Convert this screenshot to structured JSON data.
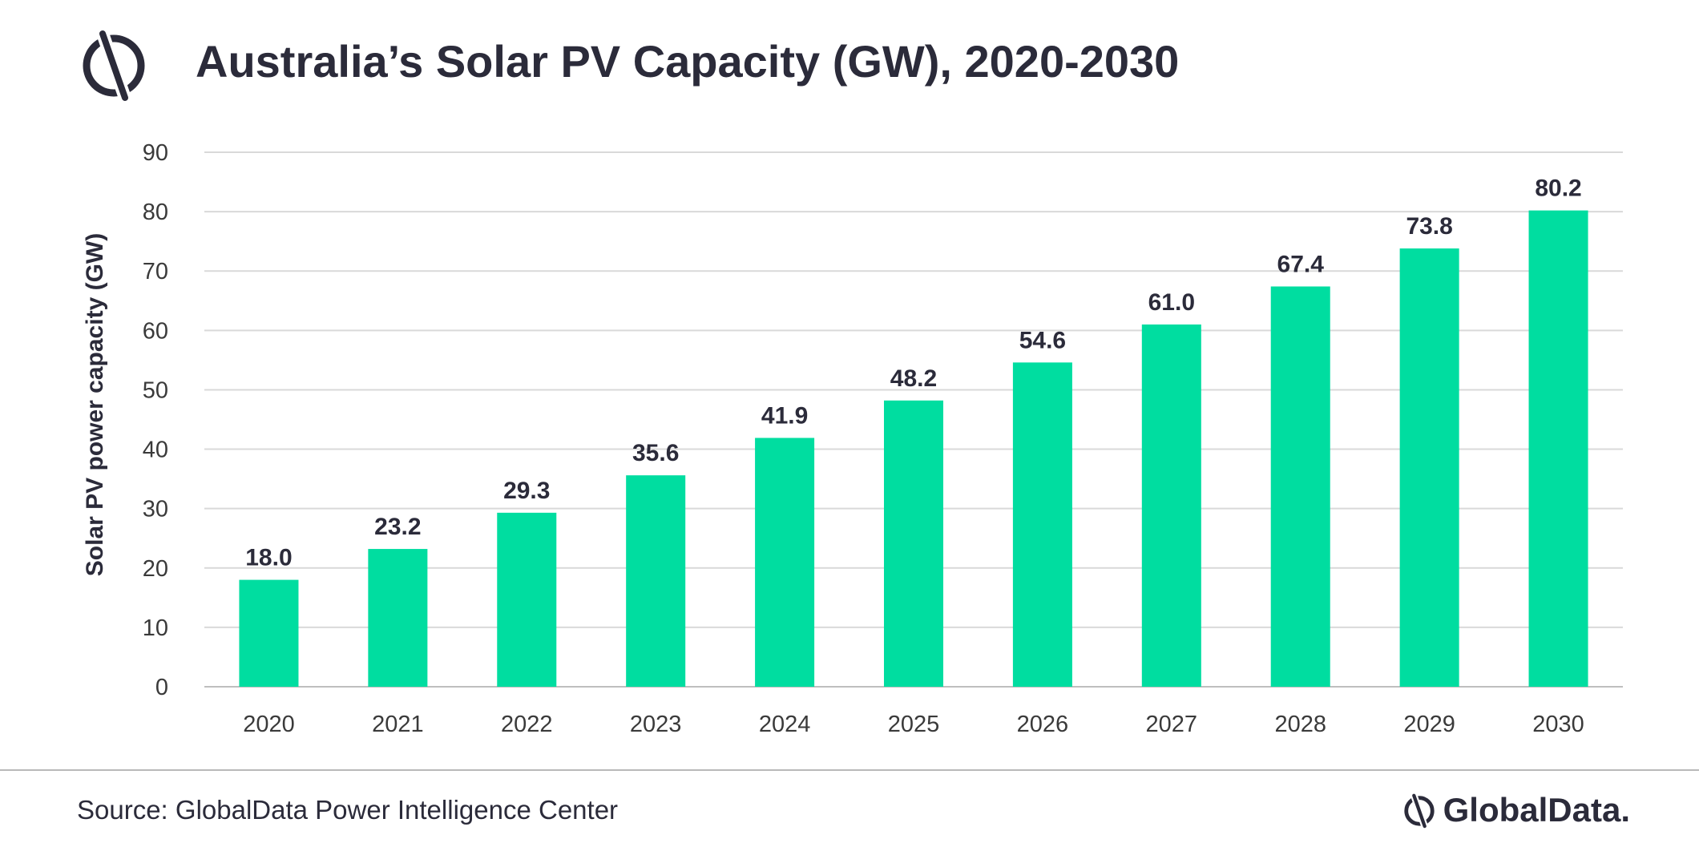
{
  "header": {
    "title": "Australia’s Solar PV Capacity (GW), 2020-2030",
    "logo_icon": "globaldata-mark-icon"
  },
  "footer": {
    "source": "Source: GlobalData Power Intelligence Center",
    "brand": "GlobalData."
  },
  "colors": {
    "bar": "#00DDA0",
    "text": "#2B2B3A",
    "grid": "#D9D9D9"
  },
  "chart_data": {
    "type": "bar",
    "title": "Australia’s Solar PV Capacity (GW), 2020-2030",
    "xlabel": "",
    "ylabel": "Solar PV power capacity (GW)",
    "categories": [
      "2020",
      "2021",
      "2022",
      "2023",
      "2024",
      "2025",
      "2026",
      "2027",
      "2028",
      "2029",
      "2030"
    ],
    "values": [
      18.0,
      23.2,
      29.3,
      35.6,
      41.9,
      48.2,
      54.6,
      61.0,
      67.4,
      73.8,
      80.2
    ],
    "value_labels": [
      "18.0",
      "23.2",
      "29.3",
      "35.6",
      "41.9",
      "48.2",
      "54.6",
      "61.0",
      "67.4",
      "73.8",
      "80.2"
    ],
    "ylim": [
      0,
      90
    ],
    "yticks": [
      "0",
      "10",
      "20",
      "30",
      "40",
      "50",
      "60",
      "70",
      "80",
      "90"
    ],
    "grid": true,
    "legend": "none"
  }
}
